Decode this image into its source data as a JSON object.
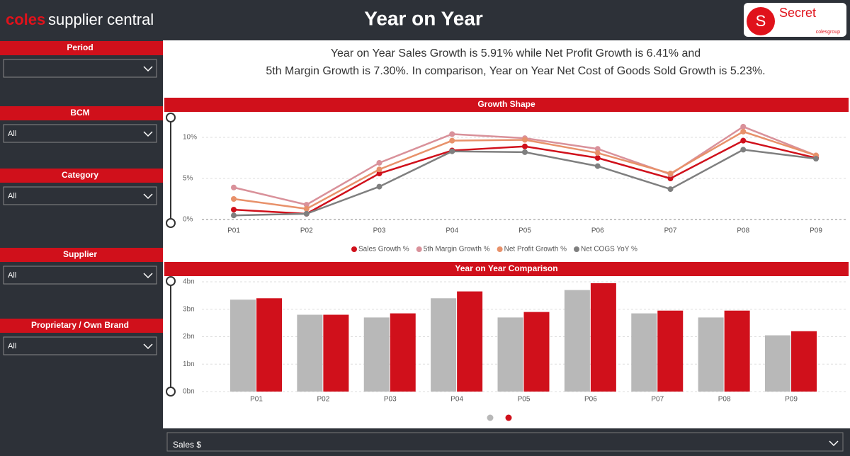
{
  "header": {
    "brand": "coles",
    "brand_suffix": "supplier central",
    "title": "Year on Year",
    "badge_letter": "S",
    "badge_text": "Secret",
    "badge_group": "colesgroup"
  },
  "filters": [
    {
      "label": "Period"
    },
    {
      "label": "BCM",
      "value": "All"
    },
    {
      "label": "Category",
      "value": "All"
    },
    {
      "label": "Supplier",
      "value": "All"
    },
    {
      "label": "Proprietary / Own Brand",
      "value": "All"
    }
  ],
  "summary": "Year on Year Sales Growth is 5.91% while Net Profit Growth is 6.41% and 5th Margin Growth is 7.30%. In comparison, Year on Year Net Cost of Goods Sold Growth is 5.23%.",
  "measure_selector": "Sales $",
  "chart_data": [
    {
      "type": "line",
      "title": "Growth Shape",
      "categories": [
        "P01",
        "P02",
        "P03",
        "P04",
        "P05",
        "P06",
        "P07",
        "P08",
        "P09"
      ],
      "series": [
        {
          "name": "Sales Growth %",
          "color": "#d0101b",
          "values": [
            1.2,
            0.7,
            5.6,
            8.4,
            8.9,
            7.5,
            5.0,
            9.6,
            7.5
          ]
        },
        {
          "name": "5th Margin Growth %",
          "color": "#d9919a",
          "values": [
            3.9,
            1.8,
            6.9,
            10.4,
            9.9,
            8.6,
            5.5,
            11.3,
            7.8
          ]
        },
        {
          "name": "Net Profit Growth %",
          "color": "#e8916a",
          "values": [
            2.5,
            1.3,
            6.1,
            9.6,
            9.7,
            8.1,
            5.6,
            10.7,
            7.8
          ]
        },
        {
          "name": "Net COGS YoY %",
          "color": "#7f7f7f",
          "values": [
            0.5,
            0.7,
            4.0,
            8.3,
            8.2,
            6.5,
            3.7,
            8.5,
            7.4
          ]
        }
      ],
      "ylim": [
        0,
        12.5
      ],
      "yticks": [
        {
          "value": 0,
          "label": "0%"
        },
        {
          "value": 5,
          "label": "5%"
        },
        {
          "value": 10,
          "label": "10%"
        }
      ],
      "grid": true
    },
    {
      "type": "bar",
      "title": "Year on Year Comparison",
      "categories": [
        "P01",
        "P02",
        "P03",
        "P04",
        "P05",
        "P06",
        "P07",
        "P08",
        "P09"
      ],
      "series": [
        {
          "color": "#b8b8b8",
          "values": [
            3.35,
            2.8,
            2.7,
            3.4,
            2.7,
            3.7,
            2.85,
            2.7,
            2.05
          ]
        },
        {
          "color": "#d0101b",
          "values": [
            3.4,
            2.8,
            2.85,
            3.65,
            2.9,
            3.95,
            2.95,
            2.95,
            2.2
          ]
        }
      ],
      "ylim": [
        0,
        4
      ],
      "yticks": [
        {
          "value": 0,
          "label": "0bn"
        },
        {
          "value": 1,
          "label": "1bn"
        },
        {
          "value": 2,
          "label": "2bn"
        },
        {
          "value": 3,
          "label": "3bn"
        },
        {
          "value": 4,
          "label": "4bn"
        }
      ],
      "grid": true
    }
  ]
}
